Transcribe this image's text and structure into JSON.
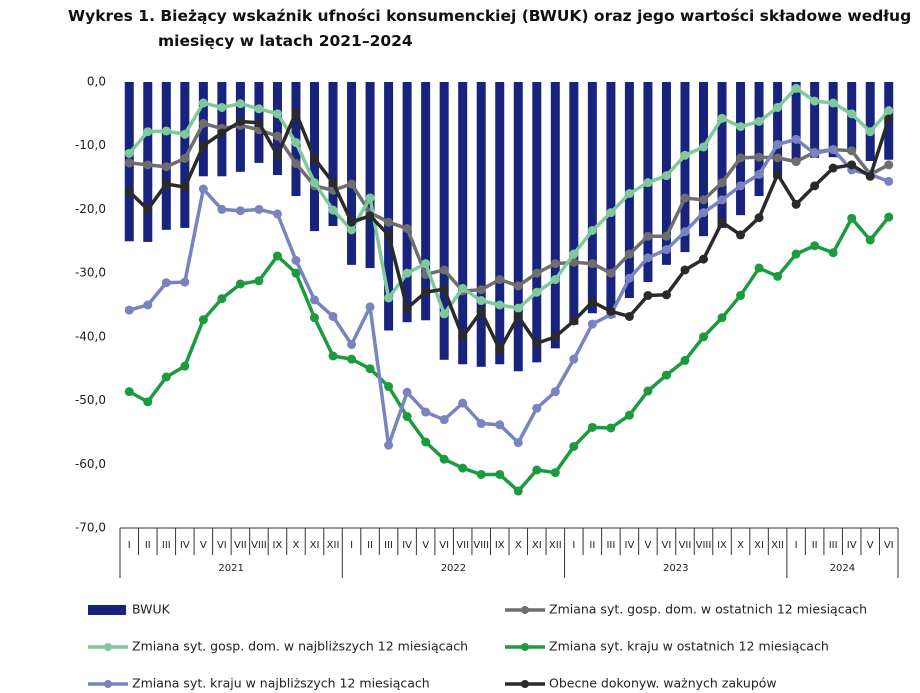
{
  "chart_data": {
    "type": "bar-line",
    "title": "Wykres 1. Bieżący wskaźnik ufności konsumenckiej (BWUK) oraz jego wartości składowe według miesięcy w latach 2021–2024",
    "categories": [
      "I",
      "II",
      "III",
      "IV",
      "V",
      "VI",
      "VII",
      "VIII",
      "IX",
      "X",
      "XI",
      "XII",
      "I",
      "II",
      "III",
      "IV",
      "V",
      "VI",
      "VII",
      "VIII",
      "IX",
      "X",
      "XI",
      "XII",
      "I",
      "II",
      "III",
      "IV",
      "V",
      "VI",
      "VII",
      "VIII",
      "IX",
      "X",
      "XI",
      "XII",
      "I",
      "II",
      "III",
      "IV",
      "V",
      "VI"
    ],
    "year_labels": [
      "2021",
      "2022",
      "2023",
      "2024"
    ],
    "ylim": [
      -70,
      0
    ],
    "yticks": [
      {
        "value": 0,
        "label": "0,0"
      },
      {
        "value": -10,
        "label": "-10,0"
      },
      {
        "value": -20,
        "label": "-20,0"
      },
      {
        "value": -30,
        "label": "-30,0"
      },
      {
        "value": -40,
        "label": "-40,0"
      },
      {
        "value": -50,
        "label": "-50,0"
      },
      {
        "value": -60,
        "label": "-60,0"
      },
      {
        "value": -70,
        "label": "-70,0"
      }
    ],
    "grid": false,
    "series": [
      {
        "name": "BWUK",
        "kind": "bar",
        "color": "#17237c",
        "values": [
          -25.0,
          -25.1,
          -23.2,
          -22.9,
          -14.8,
          -14.8,
          -14.1,
          -12.7,
          -14.6,
          -17.9,
          -23.4,
          -22.6,
          -28.7,
          -29.2,
          -39.0,
          -37.7,
          -37.4,
          -43.6,
          -44.3,
          -44.7,
          -44.3,
          -45.4,
          -44.0,
          -41.8,
          -38.1,
          -36.3,
          -37.0,
          -33.9,
          -31.4,
          -28.7,
          -26.7,
          -24.2,
          -22.9,
          -20.9,
          -17.9,
          -15.1,
          -12.7,
          -11.9,
          -11.8,
          -10.8,
          -12.4,
          -12.2
        ]
      },
      {
        "name": "Zmiana syt. gosp. dom. w ostatnich 12 miesiącach",
        "kind": "line",
        "color": "#6e6e6e",
        "values": [
          -12.7,
          -13.0,
          -13.3,
          -12.0,
          -6.5,
          -7.3,
          -6.8,
          -7.5,
          -8.5,
          -12.8,
          -16.3,
          -17.0,
          -16.0,
          -20.5,
          -22.0,
          -23.0,
          -30.2,
          -29.5,
          -32.8,
          -32.6,
          -31.0,
          -32.0,
          -30.0,
          -28.5,
          -28.3,
          -28.5,
          -30.0,
          -27.0,
          -24.2,
          -24.2,
          -18.2,
          -18.5,
          -15.8,
          -11.9,
          -11.8,
          -11.9,
          -12.5,
          -11.0,
          -10.6,
          -10.8,
          -14.5,
          -13.0
        ]
      },
      {
        "name": "Zmiana syt. gosp. dom. w najbliższych 12 miesiącach",
        "kind": "line",
        "color": "#7fc99b",
        "values": [
          -11.2,
          -7.8,
          -7.7,
          -8.2,
          -3.3,
          -4.0,
          -3.4,
          -4.2,
          -5.0,
          -9.5,
          -15.8,
          -20.1,
          -23.2,
          -18.2,
          -33.9,
          -30.0,
          -28.5,
          -36.4,
          -32.4,
          -34.3,
          -35.0,
          -35.5,
          -33.0,
          -31.0,
          -27.0,
          -23.3,
          -20.5,
          -17.5,
          -15.8,
          -14.7,
          -11.5,
          -10.2,
          -5.7,
          -7.0,
          -6.2,
          -4.0,
          -1.0,
          -3.0,
          -3.3,
          -5.0,
          -7.8,
          -4.5
        ]
      },
      {
        "name": "Zmiana syt. kraju w ostatnich 12 miesiącach",
        "kind": "line",
        "color": "#1b9b3e",
        "values": [
          -48.6,
          -50.2,
          -46.3,
          -44.6,
          -37.3,
          -34.0,
          -31.7,
          -31.2,
          -27.3,
          -30.0,
          -37.0,
          -43.0,
          -43.5,
          -45.0,
          -47.8,
          -52.5,
          -56.5,
          -59.2,
          -60.6,
          -61.6,
          -61.6,
          -64.2,
          -60.9,
          -61.3,
          -57.2,
          -54.2,
          -54.3,
          -52.3,
          -48.5,
          -46.0,
          -43.7,
          -40.0,
          -37.0,
          -33.5,
          -29.2,
          -30.5,
          -27.0,
          -25.7,
          -26.8,
          -21.4,
          -24.8,
          -21.2
        ]
      },
      {
        "name": "Zmiana syt. kraju w najbliższych 12 miesiącach",
        "kind": "line",
        "color": "#7883c0",
        "values": [
          -35.8,
          -35.0,
          -31.5,
          -31.4,
          -16.8,
          -20.0,
          -20.2,
          -20.0,
          -20.7,
          -28.0,
          -34.2,
          -36.8,
          -41.2,
          -35.3,
          -57.0,
          -48.7,
          -51.8,
          -53.0,
          -50.4,
          -53.6,
          -53.8,
          -56.6,
          -51.2,
          -48.6,
          -43.5,
          -38.0,
          -36.5,
          -30.8,
          -27.6,
          -26.3,
          -23.5,
          -20.5,
          -18.5,
          -16.3,
          -14.5,
          -9.8,
          -9.0,
          -11.2,
          -10.6,
          -13.8,
          -14.5,
          -15.6
        ]
      },
      {
        "name": "Obecne dokonyw. ważnych zakupów",
        "kind": "line",
        "color": "#2a2a2a",
        "values": [
          -17.2,
          -20.0,
          -16.0,
          -16.5,
          -10.0,
          -8.0,
          -6.2,
          -6.4,
          -11.5,
          -4.8,
          -12.0,
          -15.8,
          -22.0,
          -21.0,
          -24.0,
          -35.5,
          -33.0,
          -32.5,
          -40.0,
          -36.0,
          -42.0,
          -36.8,
          -41.0,
          -40.0,
          -37.5,
          -34.5,
          -36.0,
          -36.8,
          -33.5,
          -33.4,
          -29.5,
          -27.8,
          -22.0,
          -24.0,
          -21.3,
          -14.5,
          -19.2,
          -16.3,
          -13.5,
          -13.0,
          -14.8,
          -5.8
        ]
      }
    ]
  }
}
